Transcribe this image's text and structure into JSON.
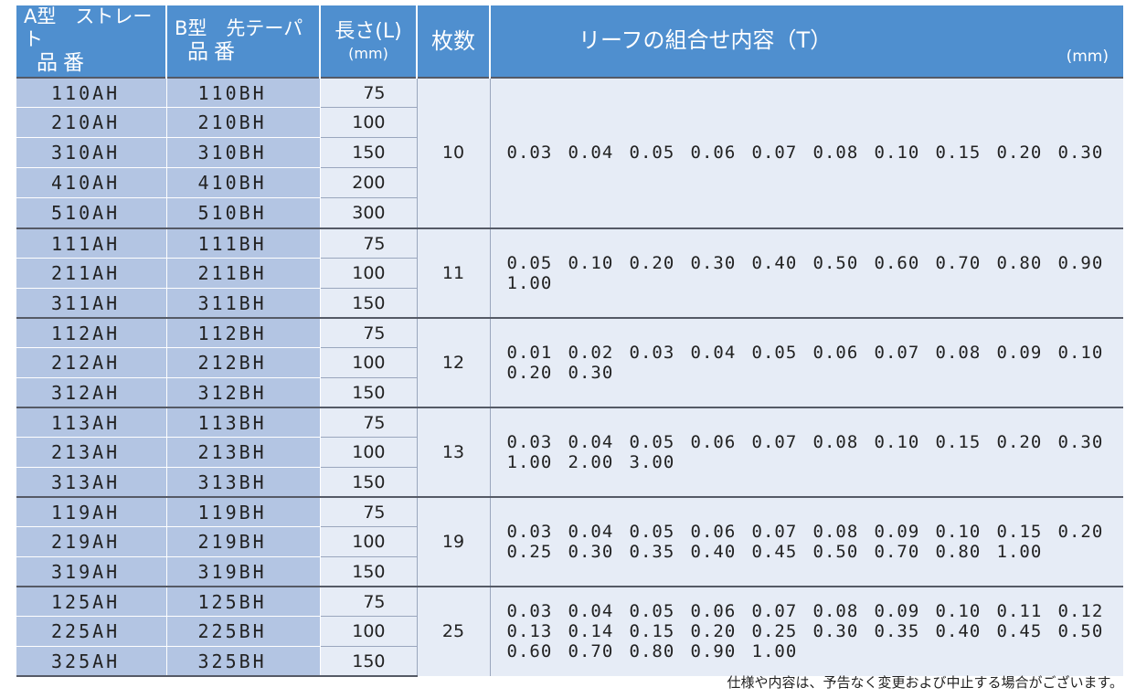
{
  "header": {
    "a_type": "A型　ストレート",
    "a_sub": "品番",
    "b_type": "B型　先テーパ",
    "b_sub": "品番",
    "length": "長さ(L)",
    "length_unit": "(mm)",
    "count": "枚数",
    "combo": "リーフの組合せ内容（T）",
    "combo_unit": "(mm)"
  },
  "groups": [
    {
      "count": "10",
      "rows": [
        [
          "110AH",
          "110BH",
          "75"
        ],
        [
          "210AH",
          "210BH",
          "100"
        ],
        [
          "310AH",
          "310BH",
          "150"
        ],
        [
          "410AH",
          "410BH",
          "200"
        ],
        [
          "510AH",
          "510BH",
          "300"
        ]
      ],
      "leaves": [
        [
          "0.03",
          "0.04",
          "0.05",
          "0.06",
          "0.07",
          "0.08",
          "0.10",
          "0.15",
          "0.20",
          "0.30"
        ]
      ]
    },
    {
      "count": "11",
      "rows": [
        [
          "111AH",
          "111BH",
          "75"
        ],
        [
          "211AH",
          "211BH",
          "100"
        ],
        [
          "311AH",
          "311BH",
          "150"
        ]
      ],
      "leaves": [
        [
          "0.05",
          "0.10",
          "0.20",
          "0.30",
          "0.40",
          "0.50",
          "0.60",
          "0.70",
          "0.80",
          "0.90"
        ],
        [
          "1.00"
        ]
      ]
    },
    {
      "count": "12",
      "rows": [
        [
          "112AH",
          "112BH",
          "75"
        ],
        [
          "212AH",
          "212BH",
          "100"
        ],
        [
          "312AH",
          "312BH",
          "150"
        ]
      ],
      "leaves": [
        [
          "0.01",
          "0.02",
          "0.03",
          "0.04",
          "0.05",
          "0.06",
          "0.07",
          "0.08",
          "0.09",
          "0.10"
        ],
        [
          "0.20",
          "0.30"
        ]
      ]
    },
    {
      "count": "13",
      "rows": [
        [
          "113AH",
          "113BH",
          "75"
        ],
        [
          "213AH",
          "213BH",
          "100"
        ],
        [
          "313AH",
          "313BH",
          "150"
        ]
      ],
      "leaves": [
        [
          "0.03",
          "0.04",
          "0.05",
          "0.06",
          "0.07",
          "0.08",
          "0.10",
          "0.15",
          "0.20",
          "0.30"
        ],
        [
          "1.00",
          "2.00",
          "3.00"
        ]
      ]
    },
    {
      "count": "19",
      "rows": [
        [
          "119AH",
          "119BH",
          "75"
        ],
        [
          "219AH",
          "219BH",
          "100"
        ],
        [
          "319AH",
          "319BH",
          "150"
        ]
      ],
      "leaves": [
        [
          "0.03",
          "0.04",
          "0.05",
          "0.06",
          "0.07",
          "0.08",
          "0.09",
          "0.10",
          "0.15",
          "0.20"
        ],
        [
          "0.25",
          "0.30",
          "0.35",
          "0.40",
          "0.45",
          "0.50",
          "0.70",
          "0.80",
          "1.00"
        ]
      ]
    },
    {
      "count": "25",
      "rows": [
        [
          "125AH",
          "125BH",
          "75"
        ],
        [
          "225AH",
          "225BH",
          "100"
        ],
        [
          "325AH",
          "325BH",
          "150"
        ]
      ],
      "leaves": [
        [
          "0.03",
          "0.04",
          "0.05",
          "0.06",
          "0.07",
          "0.08",
          "0.09",
          "0.10",
          "0.11",
          "0.12"
        ],
        [
          "0.13",
          "0.14",
          "0.15",
          "0.20",
          "0.25",
          "0.30",
          "0.35",
          "0.40",
          "0.45",
          "0.50"
        ],
        [
          "0.60",
          "0.70",
          "0.80",
          "0.90",
          "1.00"
        ]
      ]
    }
  ],
  "footnote": "仕様や内容は、予告なく変更および中止する場合がございます。"
}
